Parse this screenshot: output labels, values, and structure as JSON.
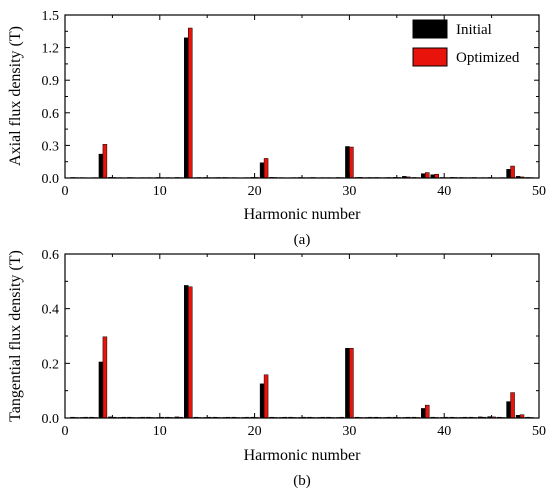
{
  "chart_data": [
    {
      "type": "bar",
      "panel_label": "(a)",
      "xlabel": "Harmonic number",
      "ylabel": "Axial flux density (T)",
      "xlim": [
        0,
        50
      ],
      "ylim": [
        0,
        1.5
      ],
      "xticks": [
        "0",
        "10",
        "20",
        "30",
        "40",
        "50"
      ],
      "yticks": [
        "0.0",
        "0.3",
        "0.6",
        "0.9",
        "1.2",
        "1.5"
      ],
      "legend": {
        "position": "top-right",
        "entries": [
          "Initial",
          "Optimized"
        ]
      },
      "x": [
        1,
        2,
        3,
        4,
        5,
        6,
        7,
        8,
        9,
        10,
        11,
        12,
        13,
        14,
        15,
        16,
        17,
        18,
        19,
        20,
        21,
        22,
        23,
        24,
        25,
        26,
        27,
        28,
        29,
        30,
        31,
        32,
        33,
        34,
        35,
        36,
        37,
        38,
        39,
        40,
        41,
        42,
        43,
        44,
        45,
        46,
        47,
        48,
        49
      ],
      "series": [
        {
          "name": "Initial",
          "color": "#000000",
          "values": [
            0.005,
            0.004,
            0.003,
            0.22,
            0.006,
            0.004,
            0.005,
            0.003,
            0.004,
            0.005,
            0.004,
            0.005,
            1.29,
            0.004,
            0.005,
            0.004,
            0.005,
            0.004,
            0.003,
            0.006,
            0.14,
            0.006,
            0.004,
            0.003,
            0.005,
            0.004,
            0.003,
            0.004,
            0.005,
            0.29,
            0.005,
            0.004,
            0.005,
            0.004,
            0.006,
            0.015,
            0.005,
            0.04,
            0.03,
            0.005,
            0.006,
            0.005,
            0.004,
            0.003,
            0.005,
            0.003,
            0.08,
            0.015,
            0.005
          ]
        },
        {
          "name": "Optimized",
          "color": "#e8140c",
          "values": [
            0.004,
            0.003,
            0.004,
            0.31,
            0.005,
            0.003,
            0.004,
            0.004,
            0.003,
            0.004,
            0.003,
            0.004,
            1.38,
            0.005,
            0.004,
            0.005,
            0.004,
            0.003,
            0.004,
            0.005,
            0.18,
            0.005,
            0.003,
            0.004,
            0.004,
            0.005,
            0.004,
            0.003,
            0.004,
            0.285,
            0.006,
            0.005,
            0.004,
            0.005,
            0.005,
            0.01,
            0.004,
            0.05,
            0.035,
            0.004,
            0.005,
            0.004,
            0.005,
            0.004,
            0.003,
            0.004,
            0.11,
            0.01,
            0.004
          ]
        }
      ]
    },
    {
      "type": "bar",
      "panel_label": "(b)",
      "xlabel": "Harmonic number",
      "ylabel": "Tangential flux density (T)",
      "xlim": [
        0,
        50
      ],
      "ylim": [
        0,
        0.6
      ],
      "xticks": [
        "0",
        "10",
        "20",
        "30",
        "40",
        "50"
      ],
      "yticks": [
        "0.0",
        "0.2",
        "0.4",
        "0.6"
      ],
      "x": [
        1,
        2,
        3,
        4,
        5,
        6,
        7,
        8,
        9,
        10,
        11,
        12,
        13,
        14,
        15,
        16,
        17,
        18,
        19,
        20,
        21,
        22,
        23,
        24,
        25,
        26,
        27,
        28,
        29,
        30,
        31,
        32,
        33,
        34,
        35,
        36,
        37,
        38,
        39,
        40,
        41,
        42,
        43,
        44,
        45,
        46,
        47,
        48,
        49
      ],
      "series": [
        {
          "name": "Initial",
          "color": "#000000",
          "values": [
            0.003,
            0.002,
            0.003,
            0.205,
            0.004,
            0.002,
            0.003,
            0.002,
            0.003,
            0.002,
            0.003,
            0.004,
            0.485,
            0.003,
            0.002,
            0.003,
            0.002,
            0.003,
            0.002,
            0.003,
            0.125,
            0.003,
            0.002,
            0.003,
            0.002,
            0.003,
            0.002,
            0.003,
            0.002,
            0.255,
            0.003,
            0.002,
            0.003,
            0.002,
            0.003,
            0.002,
            0.003,
            0.035,
            0.003,
            0.002,
            0.003,
            0.002,
            0.003,
            0.004,
            0.005,
            0.003,
            0.06,
            0.01,
            0.003
          ]
        },
        {
          "name": "Optimized",
          "color": "#e8140c",
          "values": [
            0.002,
            0.003,
            0.002,
            0.297,
            0.003,
            0.003,
            0.002,
            0.003,
            0.002,
            0.003,
            0.002,
            0.003,
            0.48,
            0.002,
            0.003,
            0.002,
            0.003,
            0.002,
            0.003,
            0.002,
            0.158,
            0.002,
            0.003,
            0.002,
            0.003,
            0.002,
            0.003,
            0.002,
            0.003,
            0.255,
            0.002,
            0.003,
            0.002,
            0.003,
            0.002,
            0.003,
            0.002,
            0.047,
            0.002,
            0.003,
            0.002,
            0.003,
            0.002,
            0.003,
            0.004,
            0.002,
            0.093,
            0.012,
            0.002
          ]
        }
      ]
    }
  ]
}
